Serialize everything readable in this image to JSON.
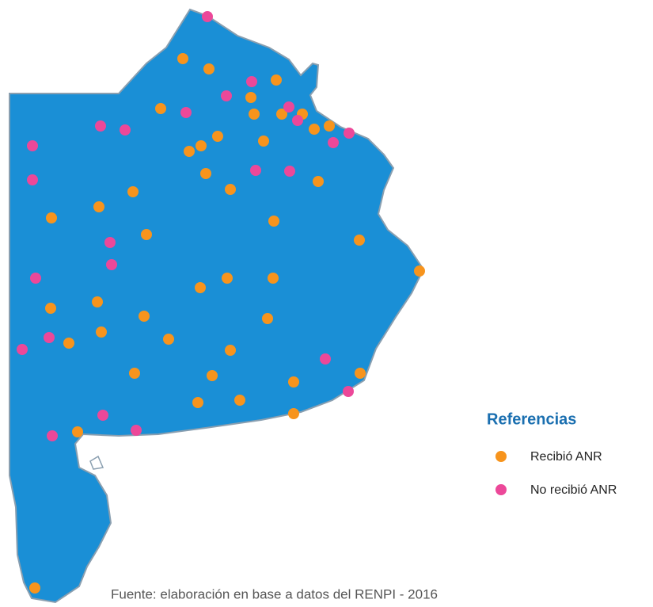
{
  "legend": {
    "title": "Referencias",
    "items": [
      {
        "label": "Recibió ANR",
        "color": "#f7941d"
      },
      {
        "label": "No recibió ANR",
        "color": "#ec4899"
      }
    ]
  },
  "source": "Fuente: elaboración en base a datos del RENPI - 2016"
}
